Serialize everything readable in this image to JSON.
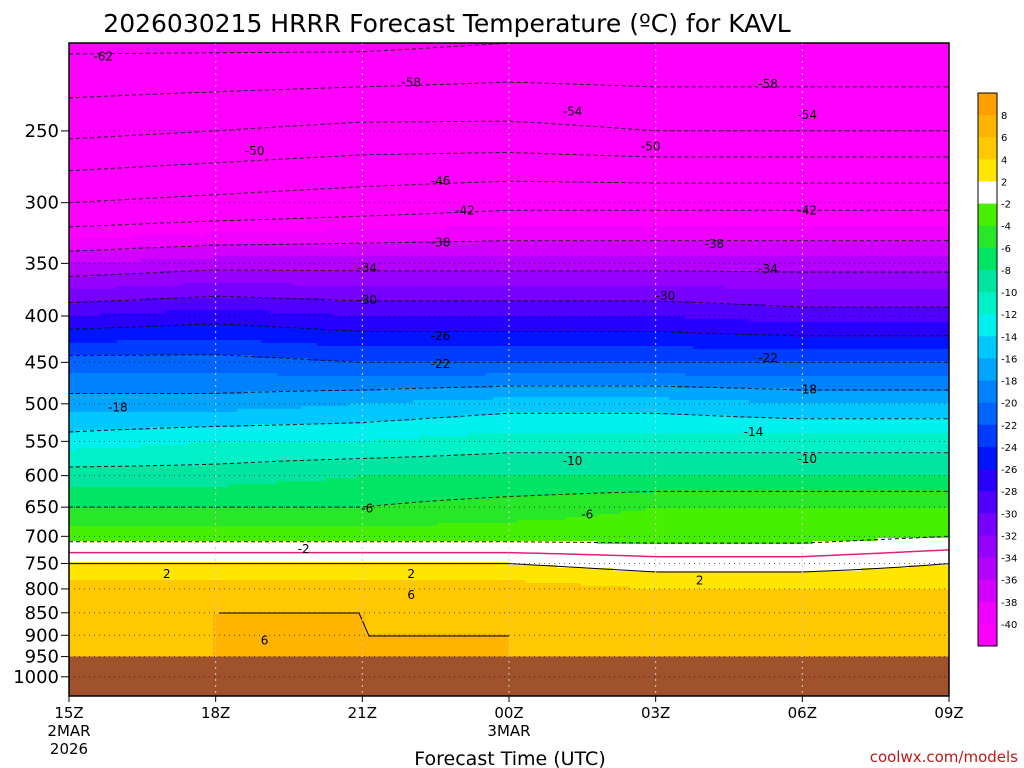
{
  "chart_data": {
    "type": "heatmap",
    "title": "2026030215 HRRR Forecast Temperature (ºC) for KAVL",
    "xlabel": "Forecast Time (UTC)",
    "ylabel": "",
    "credit": "coolwx.com/models",
    "x_ticks": [
      {
        "hour": 0,
        "label": "15Z",
        "sub1": "2MAR",
        "sub2": "2026"
      },
      {
        "hour": 3,
        "label": "18Z",
        "sub1": "",
        "sub2": ""
      },
      {
        "hour": 6,
        "label": "21Z",
        "sub1": "",
        "sub2": ""
      },
      {
        "hour": 9,
        "label": "00Z",
        "sub1": "3MAR",
        "sub2": ""
      },
      {
        "hour": 12,
        "label": "03Z",
        "sub1": "",
        "sub2": ""
      },
      {
        "hour": 15,
        "label": "06Z",
        "sub1": "",
        "sub2": ""
      },
      {
        "hour": 18,
        "label": "09Z",
        "sub1": "",
        "sub2": ""
      }
    ],
    "xlim": [
      0,
      18
    ],
    "y_ticks": [
      250,
      300,
      350,
      400,
      450,
      500,
      550,
      600,
      650,
      700,
      750,
      800,
      850,
      900,
      950,
      1000
    ],
    "ylim": [
      200,
      1050
    ],
    "yscale": "log",
    "colorbar": {
      "labels": [
        "8",
        "6",
        "4",
        "2",
        "-2",
        "-4",
        "-6",
        "-8",
        "-10",
        "-12",
        "-14",
        "-16",
        "-18",
        "-20",
        "-22",
        "-24",
        "-26",
        "-28",
        "-30",
        "-32",
        "-34",
        "-36",
        "-38",
        "-40"
      ],
      "colors": [
        "#ffa000",
        "#ffb400",
        "#ffc800",
        "#ffe600",
        "#ffffff",
        "#46f000",
        "#28e628",
        "#00e664",
        "#00e6a0",
        "#00f0c8",
        "#00f0f0",
        "#00c8ff",
        "#00a5ff",
        "#0082ff",
        "#0064ff",
        "#003cff",
        "#0014ff",
        "#2800ff",
        "#5000ff",
        "#7800ff",
        "#9600ff",
        "#b400ff",
        "#d200ff",
        "#f000ff",
        "#ff00ff"
      ]
    },
    "levels": [
      {
        "p": 200,
        "t": [
          -63,
          -63,
          -63,
          -62,
          -62,
          -62,
          -62
        ]
      },
      {
        "p": 250,
        "t": [
          -55,
          -54,
          -53,
          -53,
          -54,
          -54,
          -54
        ]
      },
      {
        "p": 300,
        "t": [
          -46,
          -45,
          -44,
          -43,
          -43,
          -43,
          -43
        ]
      },
      {
        "p": 350,
        "t": [
          -36,
          -35,
          -35,
          -35,
          -35,
          -35,
          -35
        ]
      },
      {
        "p": 400,
        "t": [
          -28,
          -27,
          -28,
          -28,
          -28,
          -29,
          -29
        ]
      },
      {
        "p": 450,
        "t": [
          -21,
          -21,
          -22,
          -22,
          -22,
          -22,
          -22
        ]
      },
      {
        "p": 500,
        "t": [
          -17,
          -17,
          -16,
          -15,
          -15,
          -16,
          -16
        ]
      },
      {
        "p": 550,
        "t": [
          -13,
          -12,
          -12,
          -11,
          -11,
          -11,
          -11
        ]
      },
      {
        "p": 600,
        "t": [
          -9,
          -9,
          -8,
          -8,
          -8,
          -8,
          -8
        ]
      },
      {
        "p": 650,
        "t": [
          -6,
          -6,
          -6,
          -5,
          -4,
          -4,
          -4
        ]
      },
      {
        "p": 700,
        "t": [
          -3,
          -3,
          -3,
          -3,
          -3,
          -3,
          -2
        ]
      },
      {
        "p": 750,
        "t": [
          2,
          2,
          2,
          2,
          1,
          1,
          2
        ]
      },
      {
        "p": 800,
        "t": [
          5,
          5,
          5,
          5,
          4,
          4,
          4
        ]
      },
      {
        "p": 850,
        "t": [
          6,
          6,
          6,
          5,
          5,
          5,
          5
        ]
      },
      {
        "p": 900,
        "t": [
          5,
          6,
          6,
          6,
          5,
          5,
          5
        ]
      },
      {
        "p": 950,
        "t": [
          6,
          6,
          6,
          6,
          5,
          5,
          5
        ]
      }
    ],
    "contour_labels": [
      {
        "hour": 0.7,
        "p": 207,
        "text": "-62"
      },
      {
        "hour": 7.0,
        "p": 221,
        "text": "-58"
      },
      {
        "hour": 14.3,
        "p": 222,
        "text": "-58"
      },
      {
        "hour": 10.3,
        "p": 238,
        "text": "-54"
      },
      {
        "hour": 15.1,
        "p": 240,
        "text": "-54"
      },
      {
        "hour": 3.8,
        "p": 263,
        "text": "-50"
      },
      {
        "hour": 11.9,
        "p": 260,
        "text": "-50"
      },
      {
        "hour": 7.6,
        "p": 284,
        "text": "-46"
      },
      {
        "hour": 8.1,
        "p": 306,
        "text": "-42"
      },
      {
        "hour": 15.1,
        "p": 306,
        "text": "-42"
      },
      {
        "hour": 7.6,
        "p": 332,
        "text": "-38"
      },
      {
        "hour": 13.2,
        "p": 333,
        "text": "-38"
      },
      {
        "hour": 6.1,
        "p": 354,
        "text": "-34"
      },
      {
        "hour": 14.3,
        "p": 355,
        "text": "-34"
      },
      {
        "hour": 6.1,
        "p": 384,
        "text": "-30"
      },
      {
        "hour": 12.2,
        "p": 380,
        "text": "-30"
      },
      {
        "hour": 7.6,
        "p": 421,
        "text": "-26"
      },
      {
        "hour": 7.6,
        "p": 452,
        "text": "-22"
      },
      {
        "hour": 14.3,
        "p": 445,
        "text": "-22"
      },
      {
        "hour": 1.0,
        "p": 505,
        "text": "-18"
      },
      {
        "hour": 15.1,
        "p": 482,
        "text": "-18"
      },
      {
        "hour": 14.0,
        "p": 537,
        "text": "-14"
      },
      {
        "hour": 10.3,
        "p": 578,
        "text": "-10"
      },
      {
        "hour": 15.1,
        "p": 575,
        "text": "-10"
      },
      {
        "hour": 6.1,
        "p": 652,
        "text": "-6"
      },
      {
        "hour": 10.6,
        "p": 662,
        "text": "-6"
      },
      {
        "hour": 4.8,
        "p": 723,
        "text": "-2"
      },
      {
        "hour": 2.0,
        "p": 770,
        "text": "2"
      },
      {
        "hour": 7.0,
        "p": 770,
        "text": "2"
      },
      {
        "hour": 12.9,
        "p": 783,
        "text": "2"
      },
      {
        "hour": 7.0,
        "p": 812,
        "text": "6"
      },
      {
        "hour": 4.0,
        "p": 912,
        "text": "6"
      }
    ]
  }
}
